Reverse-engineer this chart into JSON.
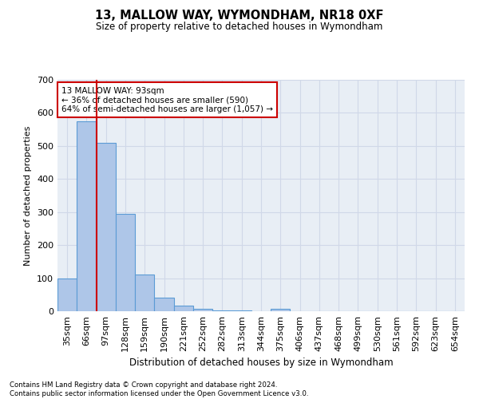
{
  "title": "13, MALLOW WAY, WYMONDHAM, NR18 0XF",
  "subtitle": "Size of property relative to detached houses in Wymondham",
  "xlabel": "Distribution of detached houses by size in Wymondham",
  "ylabel": "Number of detached properties",
  "footnote": "Contains HM Land Registry data © Crown copyright and database right 2024.\nContains public sector information licensed under the Open Government Licence v3.0.",
  "bins": [
    "35sqm",
    "66sqm",
    "97sqm",
    "128sqm",
    "159sqm",
    "190sqm",
    "221sqm",
    "252sqm",
    "282sqm",
    "313sqm",
    "344sqm",
    "375sqm",
    "406sqm",
    "437sqm",
    "468sqm",
    "499sqm",
    "530sqm",
    "561sqm",
    "592sqm",
    "623sqm",
    "654sqm"
  ],
  "values": [
    100,
    575,
    510,
    295,
    110,
    40,
    18,
    8,
    3,
    3,
    0,
    8,
    0,
    0,
    0,
    0,
    0,
    0,
    0,
    0,
    0
  ],
  "bar_color": "#aec6e8",
  "bar_edge_color": "#5b9bd5",
  "grid_color": "#d0d8e8",
  "background_color": "#e8eef5",
  "property_line_color": "#cc0000",
  "annotation_text": "13 MALLOW WAY: 93sqm\n← 36% of detached houses are smaller (590)\n64% of semi-detached houses are larger (1,057) →",
  "annotation_box_color": "#cc0000",
  "ylim": [
    0,
    700
  ],
  "yticks": [
    0,
    100,
    200,
    300,
    400,
    500,
    600,
    700
  ],
  "figsize": [
    6.0,
    5.0
  ],
  "dpi": 100
}
